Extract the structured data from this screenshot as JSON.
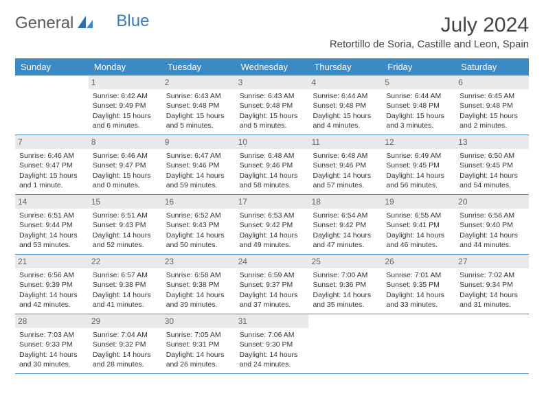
{
  "logo": {
    "part1": "General",
    "part2": "Blue"
  },
  "title": "July 2024",
  "location": "Retortillo de Soria, Castille and Leon, Spain",
  "weekdays": [
    "Sunday",
    "Monday",
    "Tuesday",
    "Wednesday",
    "Thursday",
    "Friday",
    "Saturday"
  ],
  "colors": {
    "header_bg": "#3b8ac4",
    "daynum_bg": "#e9e9e9",
    "text": "#333333",
    "title_text": "#444444"
  },
  "weeks": [
    [
      {
        "num": "",
        "sunrise": "",
        "sunset": "",
        "daylight": ""
      },
      {
        "num": "1",
        "sunrise": "Sunrise: 6:42 AM",
        "sunset": "Sunset: 9:49 PM",
        "daylight": "Daylight: 15 hours and 6 minutes."
      },
      {
        "num": "2",
        "sunrise": "Sunrise: 6:43 AM",
        "sunset": "Sunset: 9:48 PM",
        "daylight": "Daylight: 15 hours and 5 minutes."
      },
      {
        "num": "3",
        "sunrise": "Sunrise: 6:43 AM",
        "sunset": "Sunset: 9:48 PM",
        "daylight": "Daylight: 15 hours and 5 minutes."
      },
      {
        "num": "4",
        "sunrise": "Sunrise: 6:44 AM",
        "sunset": "Sunset: 9:48 PM",
        "daylight": "Daylight: 15 hours and 4 minutes."
      },
      {
        "num": "5",
        "sunrise": "Sunrise: 6:44 AM",
        "sunset": "Sunset: 9:48 PM",
        "daylight": "Daylight: 15 hours and 3 minutes."
      },
      {
        "num": "6",
        "sunrise": "Sunrise: 6:45 AM",
        "sunset": "Sunset: 9:48 PM",
        "daylight": "Daylight: 15 hours and 2 minutes."
      }
    ],
    [
      {
        "num": "7",
        "sunrise": "Sunrise: 6:46 AM",
        "sunset": "Sunset: 9:47 PM",
        "daylight": "Daylight: 15 hours and 1 minute."
      },
      {
        "num": "8",
        "sunrise": "Sunrise: 6:46 AM",
        "sunset": "Sunset: 9:47 PM",
        "daylight": "Daylight: 15 hours and 0 minutes."
      },
      {
        "num": "9",
        "sunrise": "Sunrise: 6:47 AM",
        "sunset": "Sunset: 9:46 PM",
        "daylight": "Daylight: 14 hours and 59 minutes."
      },
      {
        "num": "10",
        "sunrise": "Sunrise: 6:48 AM",
        "sunset": "Sunset: 9:46 PM",
        "daylight": "Daylight: 14 hours and 58 minutes."
      },
      {
        "num": "11",
        "sunrise": "Sunrise: 6:48 AM",
        "sunset": "Sunset: 9:46 PM",
        "daylight": "Daylight: 14 hours and 57 minutes."
      },
      {
        "num": "12",
        "sunrise": "Sunrise: 6:49 AM",
        "sunset": "Sunset: 9:45 PM",
        "daylight": "Daylight: 14 hours and 56 minutes."
      },
      {
        "num": "13",
        "sunrise": "Sunrise: 6:50 AM",
        "sunset": "Sunset: 9:45 PM",
        "daylight": "Daylight: 14 hours and 54 minutes."
      }
    ],
    [
      {
        "num": "14",
        "sunrise": "Sunrise: 6:51 AM",
        "sunset": "Sunset: 9:44 PM",
        "daylight": "Daylight: 14 hours and 53 minutes."
      },
      {
        "num": "15",
        "sunrise": "Sunrise: 6:51 AM",
        "sunset": "Sunset: 9:43 PM",
        "daylight": "Daylight: 14 hours and 52 minutes."
      },
      {
        "num": "16",
        "sunrise": "Sunrise: 6:52 AM",
        "sunset": "Sunset: 9:43 PM",
        "daylight": "Daylight: 14 hours and 50 minutes."
      },
      {
        "num": "17",
        "sunrise": "Sunrise: 6:53 AM",
        "sunset": "Sunset: 9:42 PM",
        "daylight": "Daylight: 14 hours and 49 minutes."
      },
      {
        "num": "18",
        "sunrise": "Sunrise: 6:54 AM",
        "sunset": "Sunset: 9:42 PM",
        "daylight": "Daylight: 14 hours and 47 minutes."
      },
      {
        "num": "19",
        "sunrise": "Sunrise: 6:55 AM",
        "sunset": "Sunset: 9:41 PM",
        "daylight": "Daylight: 14 hours and 46 minutes."
      },
      {
        "num": "20",
        "sunrise": "Sunrise: 6:56 AM",
        "sunset": "Sunset: 9:40 PM",
        "daylight": "Daylight: 14 hours and 44 minutes."
      }
    ],
    [
      {
        "num": "21",
        "sunrise": "Sunrise: 6:56 AM",
        "sunset": "Sunset: 9:39 PM",
        "daylight": "Daylight: 14 hours and 42 minutes."
      },
      {
        "num": "22",
        "sunrise": "Sunrise: 6:57 AM",
        "sunset": "Sunset: 9:38 PM",
        "daylight": "Daylight: 14 hours and 41 minutes."
      },
      {
        "num": "23",
        "sunrise": "Sunrise: 6:58 AM",
        "sunset": "Sunset: 9:38 PM",
        "daylight": "Daylight: 14 hours and 39 minutes."
      },
      {
        "num": "24",
        "sunrise": "Sunrise: 6:59 AM",
        "sunset": "Sunset: 9:37 PM",
        "daylight": "Daylight: 14 hours and 37 minutes."
      },
      {
        "num": "25",
        "sunrise": "Sunrise: 7:00 AM",
        "sunset": "Sunset: 9:36 PM",
        "daylight": "Daylight: 14 hours and 35 minutes."
      },
      {
        "num": "26",
        "sunrise": "Sunrise: 7:01 AM",
        "sunset": "Sunset: 9:35 PM",
        "daylight": "Daylight: 14 hours and 33 minutes."
      },
      {
        "num": "27",
        "sunrise": "Sunrise: 7:02 AM",
        "sunset": "Sunset: 9:34 PM",
        "daylight": "Daylight: 14 hours and 31 minutes."
      }
    ],
    [
      {
        "num": "28",
        "sunrise": "Sunrise: 7:03 AM",
        "sunset": "Sunset: 9:33 PM",
        "daylight": "Daylight: 14 hours and 30 minutes."
      },
      {
        "num": "29",
        "sunrise": "Sunrise: 7:04 AM",
        "sunset": "Sunset: 9:32 PM",
        "daylight": "Daylight: 14 hours and 28 minutes."
      },
      {
        "num": "30",
        "sunrise": "Sunrise: 7:05 AM",
        "sunset": "Sunset: 9:31 PM",
        "daylight": "Daylight: 14 hours and 26 minutes."
      },
      {
        "num": "31",
        "sunrise": "Sunrise: 7:06 AM",
        "sunset": "Sunset: 9:30 PM",
        "daylight": "Daylight: 14 hours and 24 minutes."
      },
      {
        "num": "",
        "sunrise": "",
        "sunset": "",
        "daylight": ""
      },
      {
        "num": "",
        "sunrise": "",
        "sunset": "",
        "daylight": ""
      },
      {
        "num": "",
        "sunrise": "",
        "sunset": "",
        "daylight": ""
      }
    ]
  ]
}
